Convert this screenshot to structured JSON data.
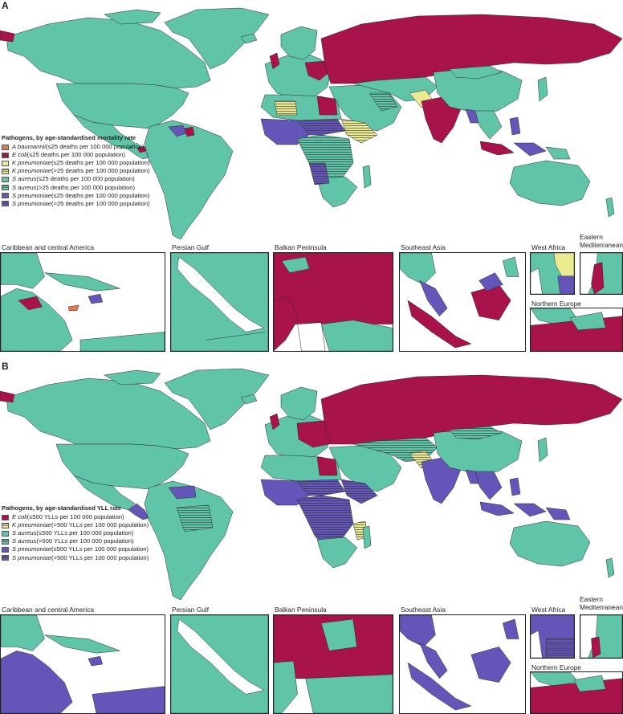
{
  "colors": {
    "ocean": "#ffffff",
    "teal": "#5fc4a8",
    "crimson": "#a7134a",
    "purple": "#6456b8",
    "yellow": "#e9ea92",
    "orange": "#e8774a",
    "border": "#2d2d2d"
  },
  "panel_a": {
    "letter": "A",
    "legend_title": "Pathogens, by age-standardised mortality rate",
    "legend": [
      {
        "organism": "A baumannii",
        "rest": " (≤25 deaths per 100 000 population)",
        "color": "#e8774a",
        "hatched": false
      },
      {
        "organism": "E coli",
        "rest": " (≤25 deaths per 100 000 population)",
        "color": "#a7134a",
        "hatched": false
      },
      {
        "organism": "K pneumoniae",
        "rest": " (≤25 deaths per 100 000 population)",
        "color": "#e9ea92",
        "hatched": false
      },
      {
        "organism": "K pneumoniae",
        "rest": " (>25 deaths per 100 000 population)",
        "color": "#e9ea92",
        "hatched": true
      },
      {
        "organism": "S aureus",
        "rest": " (≤25 deaths per 100 000 population)",
        "color": "#5fc4a8",
        "hatched": false
      },
      {
        "organism": "S aureus",
        "rest": " (>25 deaths per 100 000 population)",
        "color": "#5fc4a8",
        "hatched": true
      },
      {
        "organism": "S pneumoniae",
        "rest": " (≤25 deaths per 100 000 population)",
        "color": "#6456b8",
        "hatched": false
      },
      {
        "organism": "S pneumoniae",
        "rest": " (>25 deaths per 100 000 population)",
        "color": "#6456b8",
        "hatched": true
      }
    ],
    "insets": [
      {
        "title": "Caribbean and central America"
      },
      {
        "title": "Persian Gulf"
      },
      {
        "title": "Balkan Peninsula"
      },
      {
        "title": "Southeast Asia"
      },
      {
        "title": "West Africa"
      },
      {
        "title": "Eastern Mediterranean"
      },
      {
        "title": "Northern Europe"
      }
    ]
  },
  "panel_b": {
    "letter": "B",
    "legend_title": "Pathogens, by age-standardised YLL rate",
    "legend": [
      {
        "organism": "E coli",
        "rest": " (≤500 YLLs per 100 000 population)",
        "color": "#a7134a",
        "hatched": false
      },
      {
        "organism": "K pneumoniae",
        "rest": " (>500 YLLs per 100 000 population)",
        "color": "#e9ea92",
        "hatched": true
      },
      {
        "organism": "S aureus",
        "rest": " (≤500 YLLs per 100 000 population)",
        "color": "#5fc4a8",
        "hatched": false
      },
      {
        "organism": "S aureus",
        "rest": " (>500 YLLs per 100 000 population)",
        "color": "#5fc4a8",
        "hatched": true
      },
      {
        "organism": "S pneumoniae",
        "rest": " (≤500 YLLs per 100 000 population)",
        "color": "#6456b8",
        "hatched": false
      },
      {
        "organism": "S pneumoniae",
        "rest": " (>500 YLLs per 100 000 population)",
        "color": "#6456b8",
        "hatched": true
      }
    ],
    "insets": [
      {
        "title": "Caribbean and central America"
      },
      {
        "title": "Persian Gulf"
      },
      {
        "title": "Balkan Peninsula"
      },
      {
        "title": "Southeast Asia"
      },
      {
        "title": "West Africa"
      },
      {
        "title": "Eastern Mediterranean"
      },
      {
        "title": "Northern Europe"
      }
    ]
  }
}
